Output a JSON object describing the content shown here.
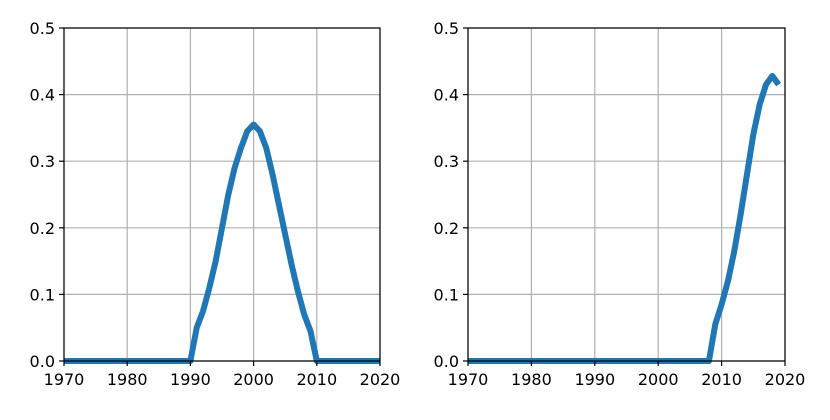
{
  "chart_data": [
    {
      "type": "line",
      "title": "",
      "xlabel": "",
      "ylabel": "",
      "xlim": [
        1970,
        2020
      ],
      "ylim": [
        0,
        0.5
      ],
      "xticks": [
        1970,
        1980,
        1990,
        2000,
        2010,
        2020
      ],
      "yticks": [
        0.0,
        0.1,
        0.2,
        0.3,
        0.4,
        0.5
      ],
      "xtick_labels": [
        "1970",
        "1980",
        "1990",
        "2000",
        "2010",
        "2020"
      ],
      "ytick_labels": [
        "0.0",
        "0.1",
        "0.2",
        "0.3",
        "0.4",
        "0.5"
      ],
      "grid": true,
      "color": "#1f77b4",
      "series": [
        {
          "x": [
            1970,
            1975,
            1980,
            1985,
            1990,
            1991,
            1992,
            1993,
            1994,
            1995,
            1996,
            1997,
            1998,
            1999,
            2000,
            2001,
            2002,
            2003,
            2004,
            2005,
            2006,
            2007,
            2008,
            2009,
            2010,
            2015,
            2020
          ],
          "y": [
            0,
            0,
            0,
            0,
            0,
            0.05,
            0.075,
            0.11,
            0.15,
            0.2,
            0.25,
            0.29,
            0.32,
            0.345,
            0.355,
            0.345,
            0.32,
            0.28,
            0.235,
            0.19,
            0.145,
            0.105,
            0.07,
            0.045,
            0,
            0,
            0
          ]
        }
      ]
    },
    {
      "type": "line",
      "title": "",
      "xlabel": "",
      "ylabel": "",
      "xlim": [
        1970,
        2020
      ],
      "ylim": [
        0,
        0.5
      ],
      "xticks": [
        1970,
        1980,
        1990,
        2000,
        2010,
        2020
      ],
      "yticks": [
        0.0,
        0.1,
        0.2,
        0.3,
        0.4,
        0.5
      ],
      "xtick_labels": [
        "1970",
        "1980",
        "1990",
        "2000",
        "2010",
        "2020"
      ],
      "ytick_labels": [
        "0.0",
        "0.1",
        "0.2",
        "0.3",
        "0.4",
        "0.5"
      ],
      "grid": true,
      "color": "#1f77b4",
      "series": [
        {
          "x": [
            1970,
            1980,
            1990,
            2000,
            2005,
            2008,
            2009,
            2010,
            2011,
            2012,
            2013,
            2014,
            2015,
            2016,
            2017,
            2018,
            2019
          ],
          "y": [
            0,
            0,
            0,
            0,
            0,
            0,
            0.055,
            0.085,
            0.12,
            0.165,
            0.22,
            0.28,
            0.34,
            0.385,
            0.415,
            0.428,
            0.415
          ]
        }
      ]
    }
  ]
}
